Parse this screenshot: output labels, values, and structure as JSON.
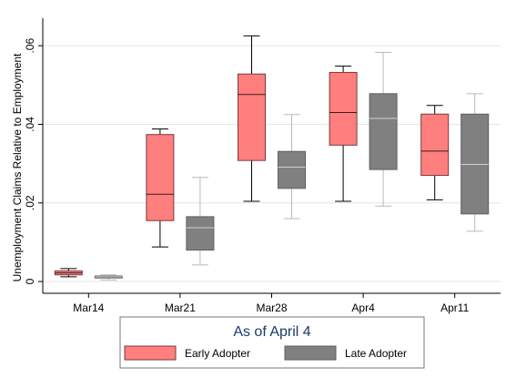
{
  "chart_data": {
    "type": "boxplot",
    "ylabel": "Unemployment Claims Relative to Employment",
    "xlabel": "",
    "ylim": [
      -0.003,
      0.067
    ],
    "y_ticks": [
      0,
      0.02,
      0.04,
      0.06
    ],
    "y_tick_labels": [
      "0",
      ".02",
      ".04",
      ".06"
    ],
    "grid": "horizontal",
    "categories": [
      "Mar14",
      "Mar21",
      "Mar28",
      "Apr4",
      "Apr11"
    ],
    "legend": {
      "title": "As of April 4",
      "placement": "bottom"
    },
    "series": [
      {
        "name": "Early Adopter",
        "color": "#ff7f7f",
        "boxes": [
          {
            "min": 0.0012,
            "q1": 0.0017,
            "median": 0.0022,
            "q3": 0.0027,
            "max": 0.0033
          },
          {
            "min": 0.0088,
            "q1": 0.0155,
            "median": 0.0222,
            "q3": 0.0374,
            "max": 0.0388
          },
          {
            "min": 0.0204,
            "q1": 0.0308,
            "median": 0.0476,
            "q3": 0.0528,
            "max": 0.0625
          },
          {
            "min": 0.0204,
            "q1": 0.0347,
            "median": 0.043,
            "q3": 0.0532,
            "max": 0.0548
          },
          {
            "min": 0.0208,
            "q1": 0.027,
            "median": 0.0332,
            "q3": 0.0426,
            "max": 0.0448
          }
        ]
      },
      {
        "name": "Late Adopter",
        "color": "#808080",
        "boxes": [
          {
            "min": 0.0004,
            "q1": 0.0009,
            "median": 0.0012,
            "q3": 0.0014,
            "max": 0.0017
          },
          {
            "min": 0.0042,
            "q1": 0.008,
            "median": 0.0137,
            "q3": 0.0165,
            "max": 0.0265
          },
          {
            "min": 0.016,
            "q1": 0.0237,
            "median": 0.0291,
            "q3": 0.0331,
            "max": 0.0425
          },
          {
            "min": 0.0192,
            "q1": 0.0285,
            "median": 0.0415,
            "q3": 0.0478,
            "max": 0.0583
          },
          {
            "min": 0.0128,
            "q1": 0.0172,
            "median": 0.0298,
            "q3": 0.0426,
            "max": 0.0478
          }
        ]
      }
    ]
  }
}
